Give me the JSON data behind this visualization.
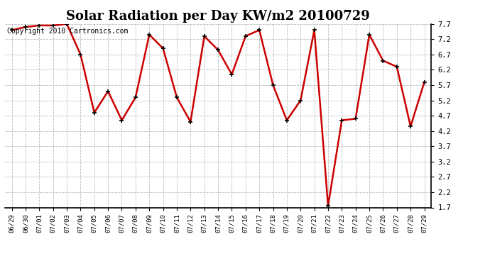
{
  "title": "Solar Radiation per Day KW/m2 20100729",
  "copyright_text": "Copyright 2010 Cartronics.com",
  "x_labels": [
    "06/29",
    "06/30",
    "07/01",
    "07/02",
    "07/03",
    "07/04",
    "07/05",
    "07/06",
    "07/07",
    "07/08",
    "07/09",
    "07/10",
    "07/11",
    "07/12",
    "07/13",
    "07/14",
    "07/15",
    "07/16",
    "07/17",
    "07/18",
    "07/19",
    "07/20",
    "07/21",
    "07/22",
    "07/23",
    "07/24",
    "07/25",
    "07/26",
    "07/27",
    "07/28",
    "07/29"
  ],
  "y_values": [
    7.5,
    7.6,
    7.65,
    7.65,
    7.7,
    6.7,
    4.8,
    5.5,
    4.55,
    5.3,
    7.35,
    6.9,
    5.3,
    4.5,
    7.3,
    6.85,
    6.05,
    7.3,
    7.5,
    5.7,
    4.55,
    5.2,
    7.5,
    1.75,
    4.55,
    4.6,
    7.35,
    6.5,
    6.3,
    4.35,
    5.8
  ],
  "line_color": "#cc0000",
  "marker_color": "#000000",
  "background_color": "#ffffff",
  "plot_bg_color": "#ffffff",
  "grid_color": "#bbbbbb",
  "y_min": 1.7,
  "y_max": 7.7,
  "y_ticks": [
    1.7,
    2.2,
    2.7,
    3.2,
    3.7,
    4.2,
    4.7,
    5.2,
    5.7,
    6.2,
    6.7,
    7.2,
    7.7
  ],
  "title_fontsize": 13,
  "copyright_fontsize": 7,
  "tick_fontsize": 6.5,
  "line_width": 1.8,
  "marker_size": 5
}
